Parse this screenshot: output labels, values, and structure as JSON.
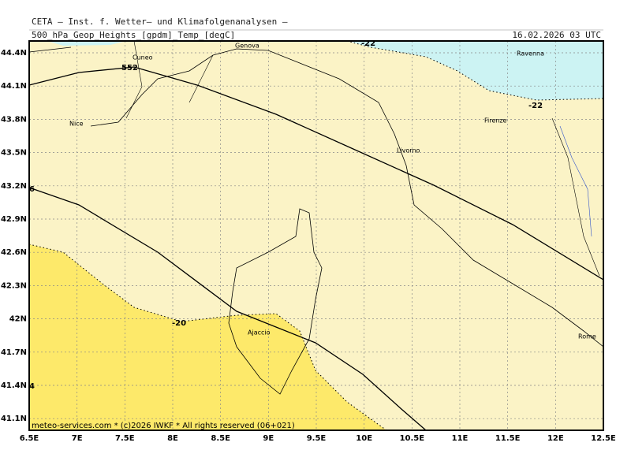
{
  "header": {
    "title": "CETA — Inst. f. Wetter— und Klimafolgenanalysen —",
    "subtitle": "500_hPa_Geop_Heights_[gpdm]_Temp_[degC]",
    "date": "16.02.2026 03 UTC"
  },
  "map": {
    "lon_labels": [
      "6.5E",
      "7E",
      "7.5E",
      "8E",
      "8.5E",
      "9E",
      "9.5E",
      "10E",
      "10.5E",
      "11E",
      "11.5E",
      "12E",
      "12.5E"
    ],
    "lat_labels": [
      "44.4N",
      "44.1N",
      "43.8N",
      "43.5N",
      "43.2N",
      "42.9N",
      "42.6N",
      "42.3N",
      "42N",
      "41.7N",
      "41.4N",
      "41.1N"
    ],
    "cities": [
      "Cuneo",
      "Genova",
      "Ravenna",
      "Nice",
      "Firenze",
      "Livorno",
      "Ajaccio",
      "Rome"
    ],
    "contour_labels": [
      "552",
      "-22",
      "-22",
      "-20",
      "6",
      "4"
    ]
  },
  "footer": "meteo-services.com * (c)2026 IWKF * All rights reserved (06+021)"
}
